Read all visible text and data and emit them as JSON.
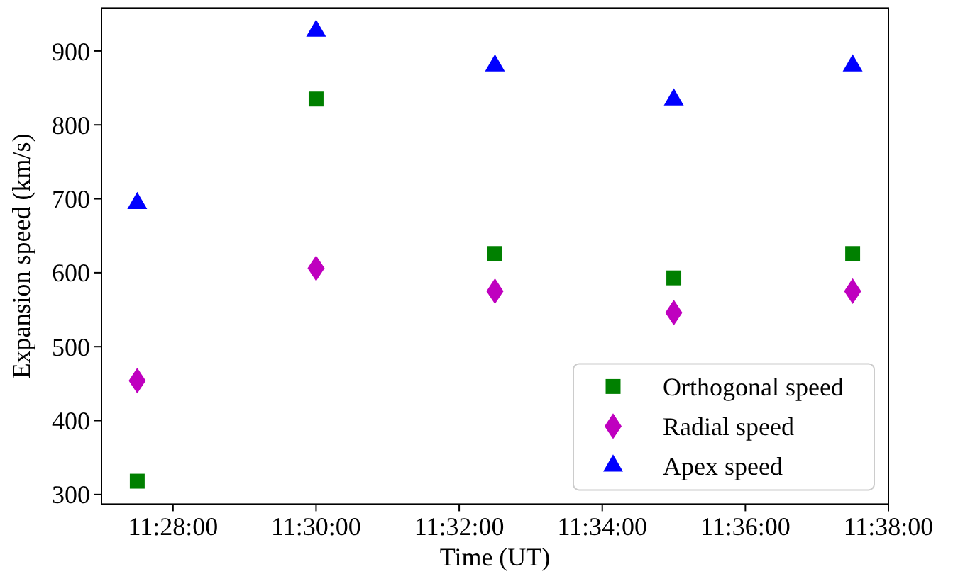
{
  "chart_data": {
    "type": "scatter",
    "xlabel": "Time (UT)",
    "ylabel": "Expansion speed (km/s)",
    "x": [
      11.458333,
      11.5,
      11.541667,
      11.583333,
      11.625
    ],
    "series": [
      {
        "name": "Orthogonal speed",
        "color": "#008000",
        "marker": "square",
        "values": [
          318,
          835,
          626,
          593,
          626
        ]
      },
      {
        "name": "Radial speed",
        "color": "#bf00bf",
        "marker": "diamond",
        "values": [
          454,
          606,
          575,
          546,
          575
        ]
      },
      {
        "name": "Apex speed",
        "color": "#0000ff",
        "marker": "triangle",
        "values": [
          694,
          927,
          880,
          834,
          880
        ]
      }
    ],
    "xlim": [
      11.45,
      11.633333
    ],
    "xticks": [
      {
        "value": 11.466667,
        "label": "11:28:00"
      },
      {
        "value": 11.5,
        "label": "11:30:00"
      },
      {
        "value": 11.533333,
        "label": "11:32:00"
      },
      {
        "value": 11.566667,
        "label": "11:34:00"
      },
      {
        "value": 11.6,
        "label": "11:36:00"
      },
      {
        "value": 11.633333,
        "label": "11:38:00"
      }
    ],
    "ylim": [
      287,
      958
    ],
    "yticks": [
      300,
      400,
      500,
      600,
      700,
      800,
      900
    ],
    "grid": false,
    "legend": "bottom right"
  }
}
